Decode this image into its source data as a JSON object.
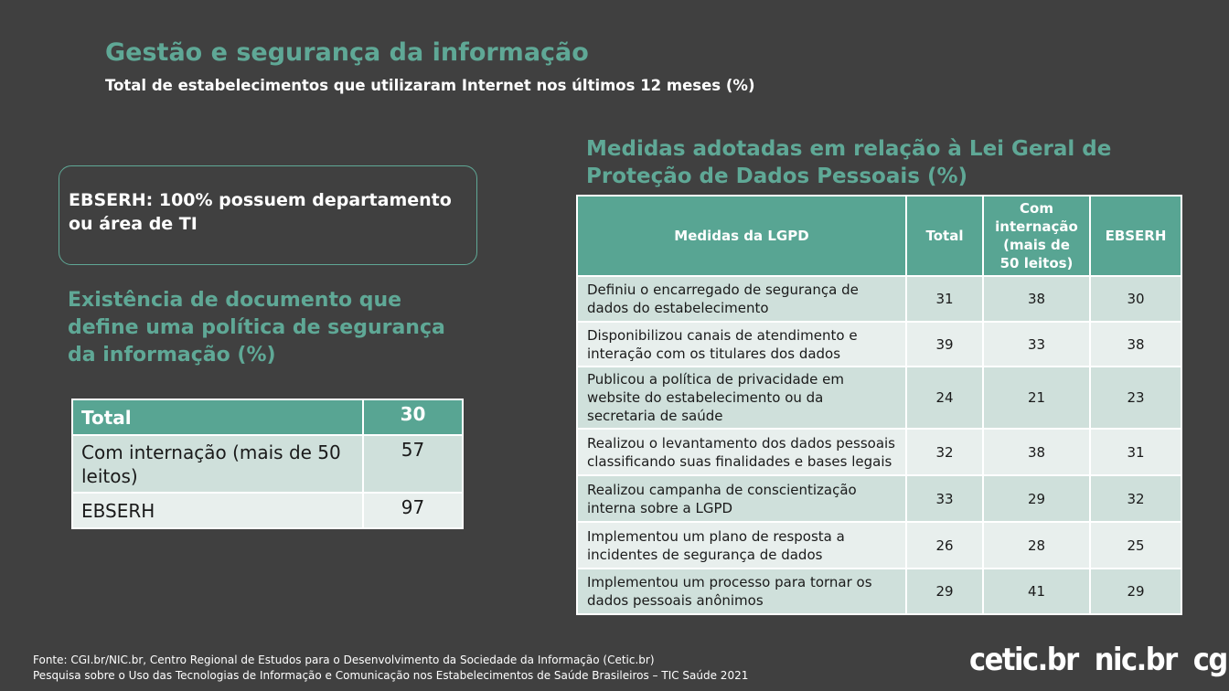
{
  "header": {
    "title": "Gestão e segurança da informação",
    "subtitle": "Total de estabelecimentos que utilizaram Internet nos últimos 12 meses (%)"
  },
  "highlight": "EBSERH: 100% possuem departamento ou área de TI",
  "left_table": {
    "title": "Existência de documento que define uma política de segurança da informação (%)",
    "rows": [
      [
        "Total",
        30
      ],
      [
        "Com internação (mais de 50 leitos)",
        57
      ],
      [
        "EBSERH",
        97
      ]
    ]
  },
  "right_table": {
    "title": "Medidas adotadas em relação à Lei Geral de Proteção de Dados Pessoais (%)",
    "columns": [
      "Medidas da LGPD",
      "Total",
      "Com internação (mais de 50 leitos)",
      "EBSERH"
    ],
    "rows": [
      [
        "Definiu o encarregado de segurança de dados do estabelecimento",
        31,
        38,
        30
      ],
      [
        "Disponibilizou canais de atendimento e interação com os titulares dos dados",
        39,
        33,
        38
      ],
      [
        "Publicou a política de privacidade em website do estabelecimento ou da secretaria de saúde",
        24,
        21,
        23
      ],
      [
        "Realizou o levantamento dos dados pessoais classificando suas finalidades e bases legais",
        32,
        38,
        31
      ],
      [
        "Realizou campanha de conscientização interna sobre a LGPD",
        33,
        29,
        32
      ],
      [
        "Implementou um plano de resposta a incidentes de segurança de dados",
        26,
        28,
        25
      ],
      [
        "Implementou um processo para tornar os dados pessoais anônimos",
        29,
        41,
        29
      ]
    ]
  },
  "footer": {
    "source": "Fonte: CGI.br/NIC.br, Centro Regional de Estudos para o Desenvolvimento da Sociedade da Informação (Cetic.br)",
    "survey": "Pesquisa sobre o Uso das Tecnologias de Informação e Comunicação nos Estabelecimentos de Saúde Brasileiros – TIC Saúde 2021",
    "logos": [
      "cetic.br",
      "nic.br",
      "cgi.br"
    ]
  }
}
